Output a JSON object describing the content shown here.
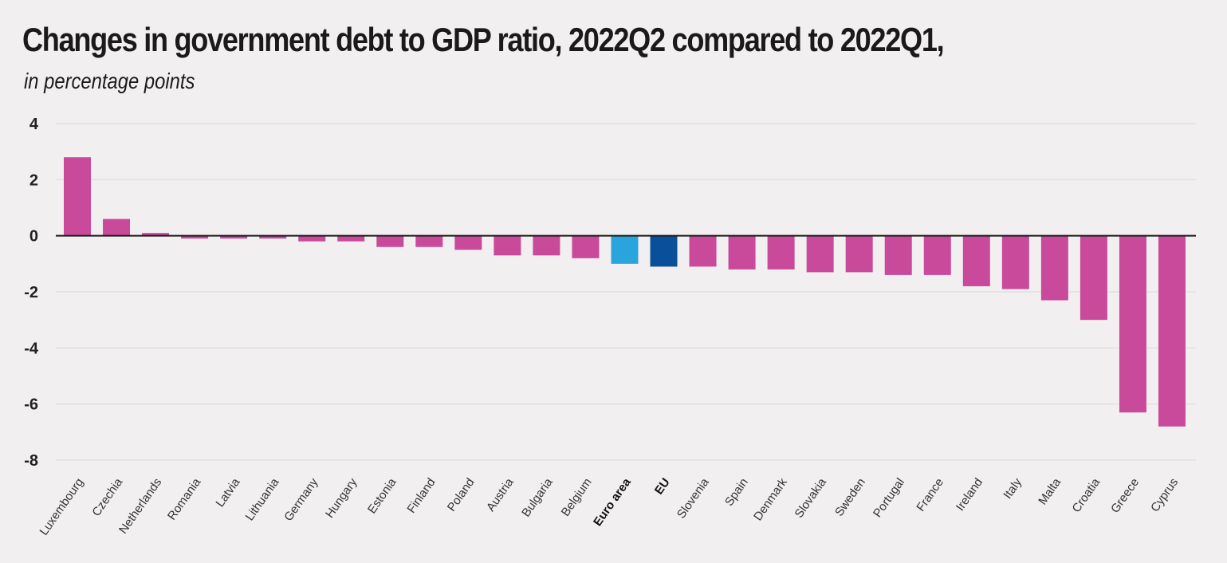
{
  "chart_data": {
    "type": "bar",
    "title": "Changes in government debt to GDP ratio, 2022Q2 compared to 2022Q1,",
    "subtitle": "in percentage points",
    "xlabel": "",
    "ylabel": "",
    "ylim": [
      -8,
      4
    ],
    "yticks": [
      4,
      2,
      0,
      -2,
      -4,
      -6,
      -8
    ],
    "grid": true,
    "categories": [
      "Luxembourg",
      "Czechia",
      "Netherlands",
      "Romania",
      "Latvia",
      "Lithuania",
      "Germany",
      "Hungary",
      "Estonia",
      "Finland",
      "Poland",
      "Austria",
      "Bulgaria",
      "Belgium",
      "Euro area",
      "EU",
      "Slovenia",
      "Spain",
      "Denmark",
      "Slovakia",
      "Sweden",
      "Portugal",
      "France",
      "Ireland",
      "Italy",
      "Malta",
      "Croatia",
      "Greece",
      "Cyprus"
    ],
    "values": [
      2.8,
      0.6,
      0.1,
      -0.1,
      -0.1,
      -0.1,
      -0.2,
      -0.2,
      -0.4,
      -0.4,
      -0.5,
      -0.7,
      -0.7,
      -0.8,
      -1.0,
      -1.1,
      -1.1,
      -1.2,
      -1.2,
      -1.3,
      -1.3,
      -1.4,
      -1.4,
      -1.8,
      -1.9,
      -2.3,
      -3.0,
      -6.3,
      -6.8
    ],
    "highlight": {
      "Euro area": "#2aa4dd",
      "EU": "#0a4f9a"
    },
    "bold_labels": [
      "Euro area",
      "EU"
    ],
    "colors": {
      "bar": "#c94a9a",
      "grid": "#e2dfe1",
      "zero_line": "#1a1a1a"
    }
  }
}
